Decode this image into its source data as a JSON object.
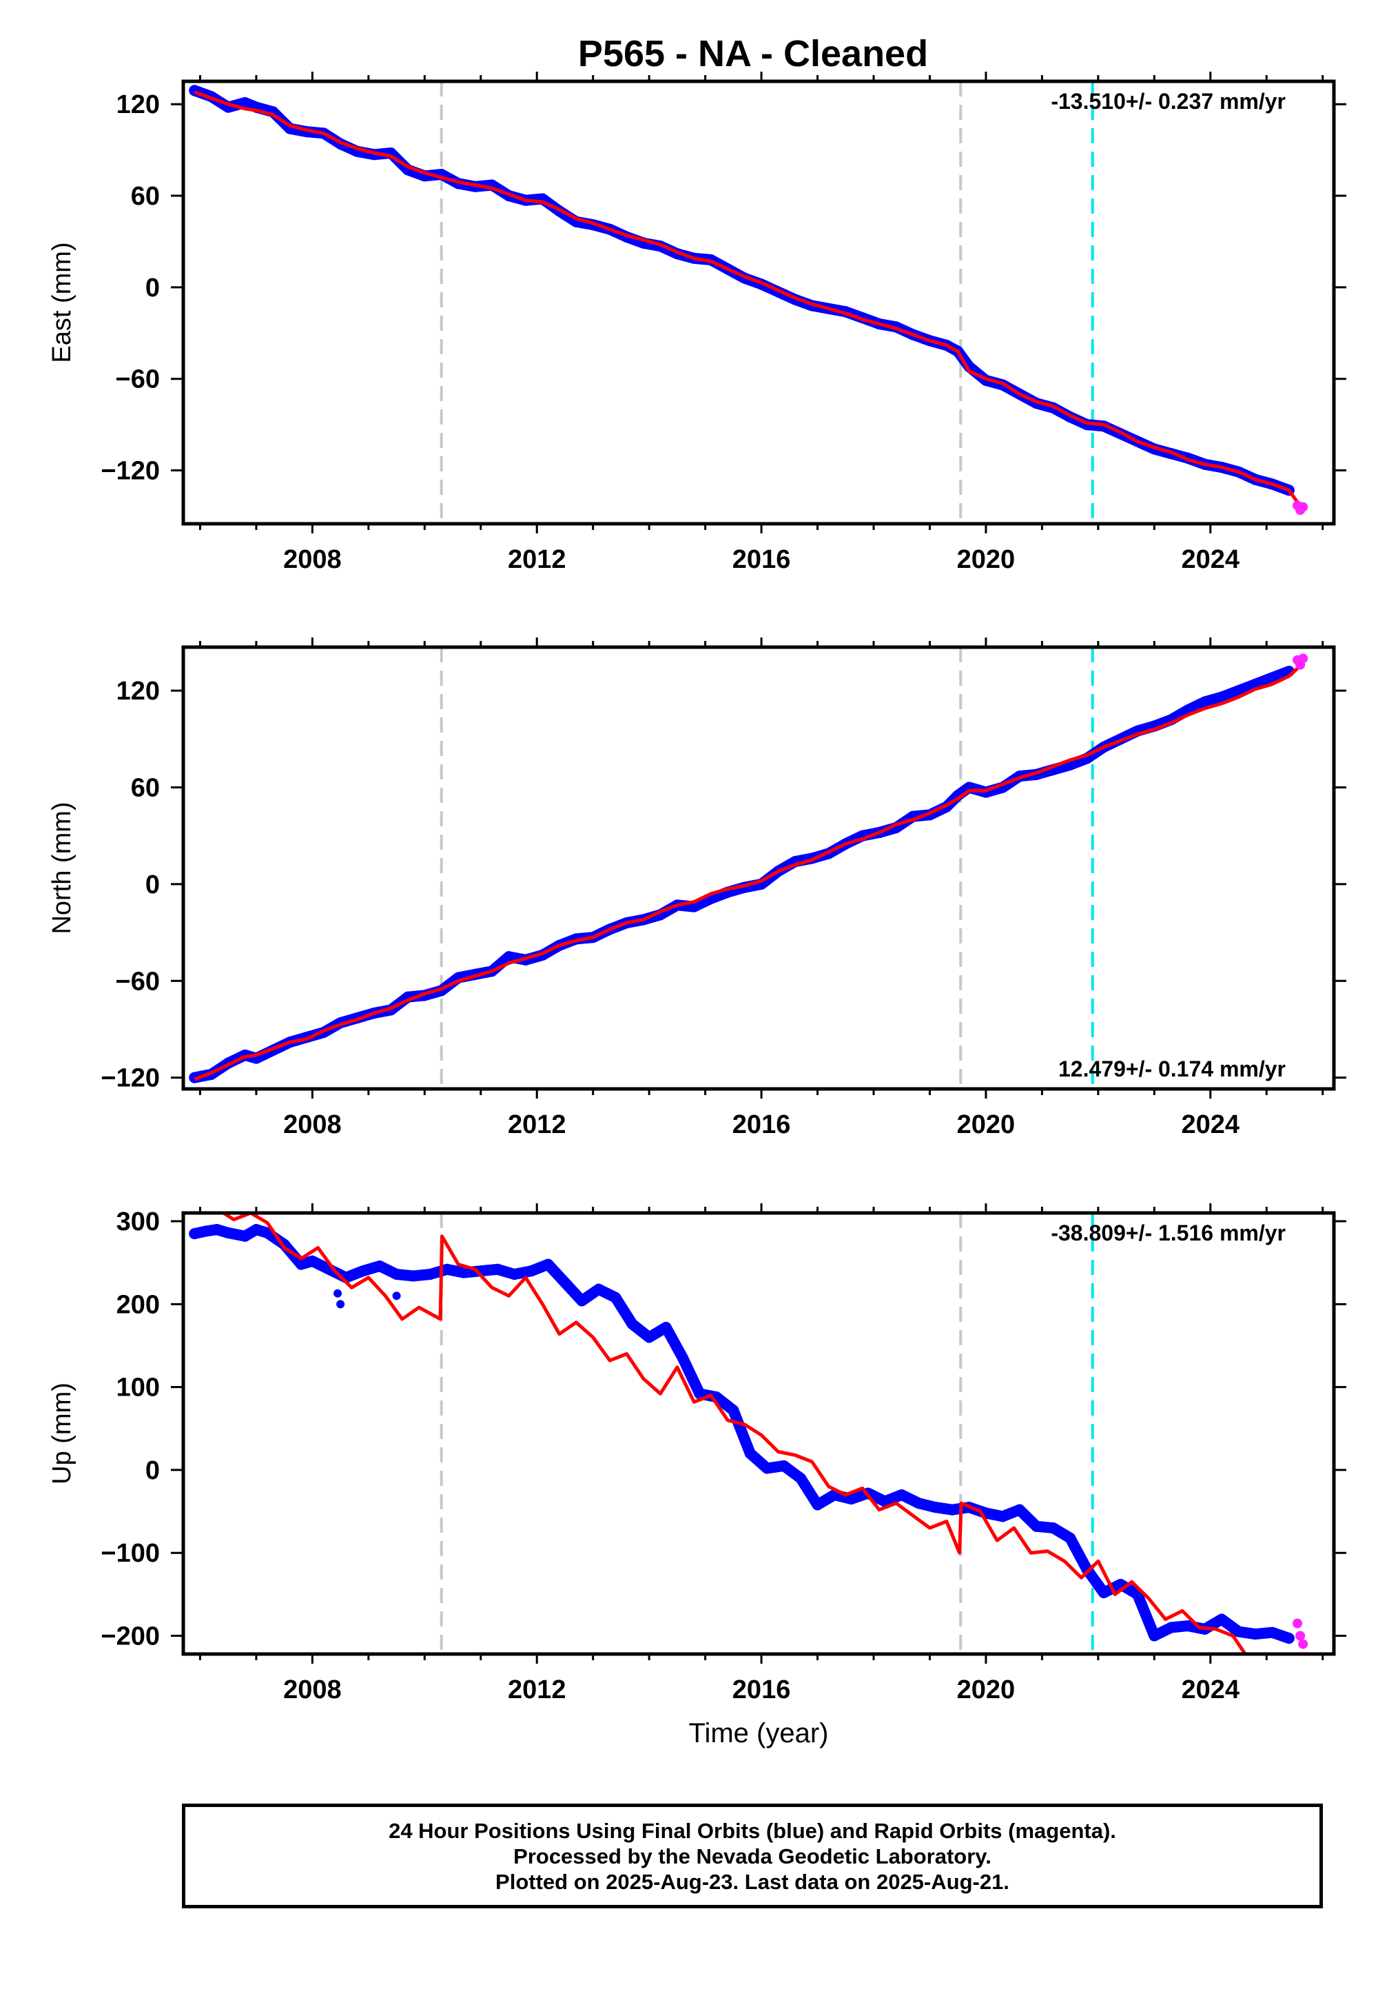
{
  "title": "P565  - NA - Cleaned",
  "colors": {
    "final_orbits": "#0000ff",
    "rapid_orbits": "#ff22ff",
    "model_fit": "#ff0000",
    "equipment_change": "#c8c8c8",
    "earthquake_marker": "#00e5ee"
  },
  "footer": {
    "line1": "24 Hour Positions Using Final Orbits (blue) and Rapid Orbits (magenta).",
    "line2": "Processed by the Nevada Geodetic Laboratory.",
    "line3": "Plotted on 2025-Aug-23. Last data on 2025-Aug-21."
  },
  "chart_data": [
    {
      "type": "scatter",
      "ylabel": "East (mm)",
      "xlabel": "",
      "rate_label": "-13.510+/- 0.237 mm/yr",
      "rate_position": "top-right",
      "xlim": [
        2005.7,
        2026.2
      ],
      "ylim": [
        -155,
        135
      ],
      "yticks": [
        -120,
        -60,
        0,
        60,
        120
      ],
      "xticks": [
        2008,
        2012,
        2016,
        2020,
        2024
      ],
      "grey_lines_x": [
        2010.3,
        2019.55
      ],
      "cyan_lines_x": [
        2021.9
      ],
      "rapid_points": [
        [
          2025.55,
          -143
        ],
        [
          2025.6,
          -146
        ],
        [
          2025.65,
          -144
        ]
      ],
      "series": [
        {
          "kind": "final_orbits",
          "x": [
            2005.9,
            2006.2,
            2006.5,
            2006.8,
            2007.0,
            2007.3,
            2007.6,
            2007.9,
            2008.2,
            2008.5,
            2008.8,
            2009.1,
            2009.4,
            2009.7,
            2010.0,
            2010.3,
            2010.6,
            2010.9,
            2011.2,
            2011.5,
            2011.8,
            2012.1,
            2012.4,
            2012.7,
            2013.0,
            2013.3,
            2013.6,
            2013.9,
            2014.2,
            2014.5,
            2014.8,
            2015.1,
            2015.4,
            2015.7,
            2016.0,
            2016.3,
            2016.6,
            2016.9,
            2017.2,
            2017.5,
            2017.8,
            2018.1,
            2018.4,
            2018.7,
            2019.0,
            2019.3,
            2019.5,
            2019.7,
            2020.0,
            2020.3,
            2020.6,
            2020.9,
            2021.2,
            2021.5,
            2021.8,
            2022.1,
            2022.4,
            2022.7,
            2023.0,
            2023.3,
            2023.6,
            2023.9,
            2024.2,
            2024.5,
            2024.8,
            2025.1,
            2025.4
          ],
          "y": [
            129,
            125,
            118,
            121,
            118,
            115,
            104,
            102,
            101,
            94,
            89,
            87,
            88,
            77,
            73,
            74,
            68,
            66,
            67,
            60,
            57,
            58,
            50,
            43,
            41,
            38,
            33,
            29,
            27,
            22,
            19,
            18,
            12,
            6,
            2,
            -3,
            -8,
            -12,
            -14,
            -16,
            -20,
            -24,
            -26,
            -31,
            -35,
            -38,
            -42,
            -52,
            -61,
            -64,
            -70,
            -76,
            -79,
            -85,
            -90,
            -91,
            -96,
            -101,
            -106,
            -109,
            -112,
            -116,
            -118,
            -121,
            -126,
            -129,
            -133
          ]
        },
        {
          "kind": "model_fit",
          "x": [
            2005.9,
            2006.2,
            2006.5,
            2006.8,
            2007.0,
            2007.3,
            2007.6,
            2007.9,
            2008.2,
            2008.5,
            2008.8,
            2009.1,
            2009.4,
            2009.7,
            2010.0,
            2010.3,
            2010.6,
            2010.9,
            2011.2,
            2011.5,
            2011.8,
            2012.1,
            2012.4,
            2012.7,
            2013.0,
            2013.3,
            2013.6,
            2013.9,
            2014.2,
            2014.5,
            2014.8,
            2015.1,
            2015.4,
            2015.7,
            2016.0,
            2016.3,
            2016.6,
            2016.9,
            2017.2,
            2017.5,
            2017.8,
            2018.1,
            2018.4,
            2018.7,
            2019.0,
            2019.3,
            2019.5,
            2019.7,
            2020.0,
            2020.3,
            2020.6,
            2020.9,
            2021.2,
            2021.5,
            2021.8,
            2022.1,
            2022.4,
            2022.7,
            2023.0,
            2023.3,
            2023.6,
            2023.9,
            2024.2,
            2024.5,
            2024.8,
            2025.1,
            2025.4,
            2025.65
          ],
          "y": [
            128,
            124,
            120,
            117,
            116,
            113,
            106,
            103,
            101,
            95,
            91,
            88,
            86,
            79,
            75,
            72,
            69,
            67,
            65,
            61,
            57,
            56,
            51,
            45,
            42,
            38,
            34,
            31,
            28,
            23,
            19,
            17,
            12,
            7,
            3,
            -2,
            -7,
            -11,
            -14,
            -17,
            -21,
            -24,
            -27,
            -31,
            -35,
            -38,
            -42,
            -55,
            -60,
            -63,
            -70,
            -75,
            -78,
            -84,
            -89,
            -90,
            -95,
            -101,
            -105,
            -108,
            -113,
            -116,
            -118,
            -121,
            -126,
            -129,
            -133,
            -146
          ]
        }
      ]
    },
    {
      "type": "scatter",
      "ylabel": "North (mm)",
      "xlabel": "",
      "rate_label": "12.479+/- 0.174 mm/yr",
      "rate_position": "bottom-right",
      "xlim": [
        2005.7,
        2026.2
      ],
      "ylim": [
        -127,
        147
      ],
      "yticks": [
        -120,
        -60,
        0,
        60,
        120
      ],
      "xticks": [
        2008,
        2012,
        2016,
        2020,
        2024
      ],
      "grey_lines_x": [
        2010.3,
        2019.55
      ],
      "cyan_lines_x": [
        2021.9
      ],
      "rapid_points": [
        [
          2025.55,
          139
        ],
        [
          2025.6,
          136
        ],
        [
          2025.65,
          140
        ]
      ],
      "series": [
        {
          "kind": "final_orbits",
          "x": [
            2005.9,
            2006.2,
            2006.5,
            2006.8,
            2007.0,
            2007.3,
            2007.6,
            2007.9,
            2008.2,
            2008.5,
            2008.8,
            2009.1,
            2009.4,
            2009.7,
            2010.0,
            2010.3,
            2010.6,
            2010.9,
            2011.2,
            2011.5,
            2011.8,
            2012.1,
            2012.4,
            2012.7,
            2013.0,
            2013.3,
            2013.6,
            2013.9,
            2014.2,
            2014.5,
            2014.8,
            2015.1,
            2015.4,
            2015.7,
            2016.0,
            2016.3,
            2016.6,
            2016.9,
            2017.2,
            2017.5,
            2017.8,
            2018.1,
            2018.4,
            2018.7,
            2019.0,
            2019.3,
            2019.5,
            2019.7,
            2020.0,
            2020.3,
            2020.6,
            2020.9,
            2021.2,
            2021.5,
            2021.8,
            2022.1,
            2022.4,
            2022.7,
            2023.0,
            2023.3,
            2023.6,
            2023.9,
            2024.2,
            2024.5,
            2024.8,
            2025.1,
            2025.4
          ],
          "y": [
            -120,
            -118,
            -111,
            -106,
            -108,
            -103,
            -98,
            -95,
            -92,
            -86,
            -83,
            -80,
            -78,
            -70,
            -69,
            -66,
            -58,
            -56,
            -54,
            -45,
            -47,
            -44,
            -38,
            -34,
            -33,
            -28,
            -24,
            -22,
            -19,
            -13,
            -14,
            -9,
            -5,
            -2,
            0,
            8,
            14,
            16,
            19,
            25,
            30,
            32,
            35,
            42,
            43,
            48,
            55,
            60,
            57,
            60,
            67,
            68,
            71,
            74,
            78,
            85,
            90,
            95,
            98,
            102,
            108,
            113,
            116,
            120,
            124,
            128,
            132
          ]
        },
        {
          "kind": "model_fit",
          "x": [
            2005.9,
            2006.2,
            2006.5,
            2006.8,
            2007.0,
            2007.3,
            2007.6,
            2007.9,
            2008.2,
            2008.5,
            2008.8,
            2009.1,
            2009.4,
            2009.7,
            2010.0,
            2010.3,
            2010.6,
            2010.9,
            2011.2,
            2011.5,
            2011.8,
            2012.1,
            2012.4,
            2012.7,
            2013.0,
            2013.3,
            2013.6,
            2013.9,
            2014.2,
            2014.5,
            2014.8,
            2015.1,
            2015.4,
            2015.7,
            2016.0,
            2016.3,
            2016.6,
            2016.9,
            2017.2,
            2017.5,
            2017.8,
            2018.1,
            2018.4,
            2018.7,
            2019.0,
            2019.3,
            2019.5,
            2019.7,
            2020.0,
            2020.3,
            2020.6,
            2020.9,
            2021.2,
            2021.5,
            2021.8,
            2022.1,
            2022.4,
            2022.7,
            2023.0,
            2023.3,
            2023.6,
            2023.9,
            2024.2,
            2024.5,
            2024.8,
            2025.1,
            2025.4,
            2025.65
          ],
          "y": [
            -121,
            -117,
            -112,
            -107,
            -106,
            -102,
            -98,
            -96,
            -91,
            -87,
            -84,
            -80,
            -77,
            -72,
            -68,
            -65,
            -60,
            -57,
            -54,
            -49,
            -46,
            -43,
            -38,
            -35,
            -33,
            -28,
            -24,
            -22,
            -17,
            -13,
            -11,
            -6,
            -3,
            -1,
            2,
            8,
            12,
            15,
            20,
            25,
            28,
            32,
            37,
            40,
            44,
            49,
            53,
            58,
            58,
            62,
            66,
            69,
            73,
            77,
            80,
            85,
            89,
            93,
            96,
            100,
            105,
            109,
            112,
            116,
            121,
            124,
            129,
            137
          ]
        }
      ]
    },
    {
      "type": "scatter",
      "ylabel": "Up (mm)",
      "xlabel": "Time (year)",
      "rate_label": "-38.809+/- 1.516 mm/yr",
      "rate_position": "top-right",
      "xlim": [
        2005.7,
        2026.2
      ],
      "ylim": [
        -222,
        310
      ],
      "yticks": [
        -200,
        -100,
        0,
        100,
        200,
        300
      ],
      "xticks": [
        2008,
        2012,
        2016,
        2020,
        2024
      ],
      "grey_lines_x": [
        2010.3,
        2019.55
      ],
      "cyan_lines_x": [
        2021.9
      ],
      "rapid_points": [
        [
          2025.55,
          -185
        ],
        [
          2025.6,
          -200
        ],
        [
          2025.65,
          -210
        ]
      ],
      "outlier_points": [
        [
          2008.5,
          200
        ],
        [
          2009.5,
          210
        ],
        [
          2008.45,
          213
        ]
      ],
      "series": [
        {
          "kind": "final_orbits",
          "x": [
            2005.9,
            2006.1,
            2006.3,
            2006.5,
            2006.8,
            2007.0,
            2007.2,
            2007.5,
            2007.8,
            2008.0,
            2008.3,
            2008.6,
            2008.9,
            2009.2,
            2009.5,
            2009.8,
            2010.1,
            2010.4,
            2010.7,
            2011.0,
            2011.3,
            2011.6,
            2011.9,
            2012.2,
            2012.5,
            2012.8,
            2013.1,
            2013.4,
            2013.7,
            2014.0,
            2014.3,
            2014.6,
            2014.9,
            2015.2,
            2015.5,
            2015.8,
            2016.1,
            2016.4,
            2016.7,
            2017.0,
            2017.3,
            2017.6,
            2017.9,
            2018.2,
            2018.5,
            2018.8,
            2019.1,
            2019.4,
            2019.7,
            2020.0,
            2020.3,
            2020.6,
            2020.9,
            2021.2,
            2021.5,
            2021.8,
            2022.1,
            2022.4,
            2022.7,
            2023.0,
            2023.3,
            2023.6,
            2023.9,
            2024.2,
            2024.5,
            2024.8,
            2025.1,
            2025.4
          ],
          "y": [
            285,
            288,
            290,
            286,
            282,
            290,
            286,
            272,
            248,
            252,
            242,
            232,
            240,
            246,
            236,
            234,
            236,
            242,
            238,
            240,
            242,
            236,
            240,
            248,
            226,
            204,
            218,
            208,
            176,
            160,
            172,
            135,
            92,
            88,
            72,
            20,
            2,
            5,
            -10,
            -42,
            -30,
            -35,
            -28,
            -38,
            -30,
            -40,
            -45,
            -48,
            -45,
            -52,
            -56,
            -48,
            -68,
            -70,
            -82,
            -120,
            -148,
            -138,
            -150,
            -200,
            -190,
            -188,
            -192,
            -180,
            -195,
            -198,
            -196,
            -203
          ]
        },
        {
          "kind": "model_fit",
          "x": [
            2006.3,
            2006.6,
            2006.9,
            2007.2,
            2007.5,
            2007.8,
            2008.1,
            2008.4,
            2008.7,
            2009.0,
            2009.3,
            2009.6,
            2009.9,
            2010.2,
            2010.28,
            2010.31,
            2010.6,
            2010.9,
            2011.2,
            2011.5,
            2011.8,
            2012.1,
            2012.4,
            2012.7,
            2013.0,
            2013.3,
            2013.6,
            2013.9,
            2014.2,
            2014.5,
            2014.8,
            2015.1,
            2015.4,
            2015.7,
            2016.0,
            2016.3,
            2016.6,
            2016.9,
            2017.2,
            2017.5,
            2017.8,
            2018.1,
            2018.4,
            2018.7,
            2019.0,
            2019.3,
            2019.53,
            2019.56,
            2019.9,
            2020.2,
            2020.5,
            2020.8,
            2021.1,
            2021.4,
            2021.7,
            2022.0,
            2022.3,
            2022.6,
            2022.9,
            2023.2,
            2023.5,
            2023.8,
            2024.1,
            2024.4,
            2024.65
          ],
          "y": [
            315,
            302,
            310,
            298,
            268,
            255,
            268,
            240,
            220,
            232,
            210,
            182,
            196,
            185,
            182,
            282,
            248,
            242,
            220,
            210,
            232,
            200,
            164,
            178,
            160,
            132,
            140,
            110,
            92,
            124,
            82,
            90,
            60,
            55,
            42,
            22,
            18,
            10,
            -20,
            -30,
            -22,
            -48,
            -40,
            -55,
            -70,
            -62,
            -100,
            -40,
            -50,
            -85,
            -70,
            -100,
            -98,
            -110,
            -130,
            -110,
            -150,
            -135,
            -155,
            -180,
            -170,
            -190,
            -192,
            -200,
            -225
          ]
        }
      ]
    }
  ]
}
